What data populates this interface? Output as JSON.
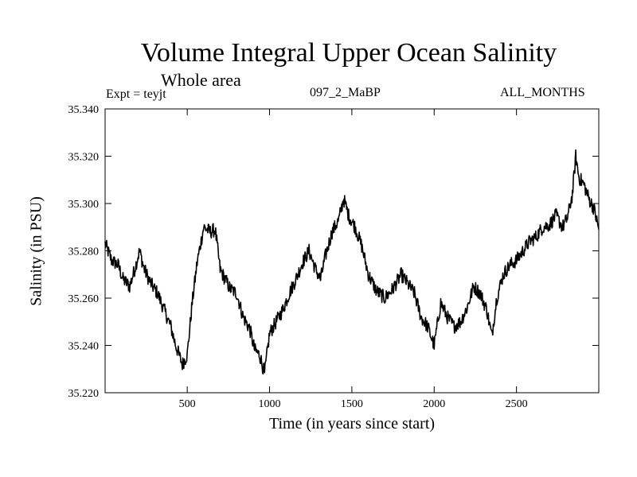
{
  "chart_data": {
    "type": "line",
    "title": "Volume Integral Upper Ocean Salinity",
    "subtitle": "Whole area",
    "annotation_left": "Expt = teyjt",
    "annotation_center": "097_2_MaBP",
    "annotation_right": "ALL_MONTHS",
    "xlabel": "Time (in years since start)",
    "ylabel": "Salinity (in PSU)",
    "xlim": [
      1,
      3000
    ],
    "ylim": [
      35.22,
      35.34
    ],
    "xticks": [
      500,
      1000,
      1500,
      2000,
      2500
    ],
    "xtick_labels": [
      "500",
      "1000",
      "1500",
      "2000",
      "2500"
    ],
    "yticks": [
      35.22,
      35.24,
      35.26,
      35.28,
      35.3,
      35.32,
      35.34
    ],
    "ytick_labels": [
      "35.220",
      "35.240",
      "35.260",
      "35.280",
      "35.300",
      "35.320",
      "35.340"
    ],
    "line_color": "#000000",
    "series": [
      {
        "name": "salinity",
        "x": [
          1,
          40,
          80,
          110,
          150,
          180,
          210,
          240,
          280,
          320,
          360,
          400,
          430,
          470,
          500,
          530,
          560,
          600,
          640,
          670,
          700,
          730,
          760,
          800,
          840,
          880,
          910,
          940,
          970,
          1000,
          1040,
          1080,
          1120,
          1160,
          1200,
          1240,
          1280,
          1310,
          1340,
          1380,
          1420,
          1450,
          1480,
          1520,
          1560,
          1600,
          1650,
          1700,
          1750,
          1800,
          1850,
          1880,
          1920,
          1960,
          2000,
          2040,
          2080,
          2120,
          2160,
          2200,
          2240,
          2280,
          2320,
          2350,
          2380,
          2420,
          2460,
          2500,
          2540,
          2580,
          2620,
          2660,
          2700,
          2740,
          2780,
          2810,
          2840,
          2860,
          2880,
          2910,
          2940,
          2970,
          3000
        ],
        "values": [
          35.283,
          35.276,
          35.274,
          35.268,
          35.265,
          35.272,
          35.28,
          35.272,
          35.266,
          35.262,
          35.255,
          35.248,
          35.24,
          35.232,
          35.236,
          35.258,
          35.275,
          35.29,
          35.288,
          35.289,
          35.272,
          35.268,
          35.264,
          35.262,
          35.252,
          35.247,
          35.238,
          35.236,
          35.228,
          35.245,
          35.25,
          35.255,
          35.262,
          35.268,
          35.275,
          35.28,
          35.272,
          35.268,
          35.278,
          35.288,
          35.293,
          35.302,
          35.295,
          35.29,
          35.282,
          35.27,
          35.263,
          35.26,
          35.264,
          35.27,
          35.265,
          35.262,
          35.252,
          35.248,
          35.24,
          35.258,
          35.252,
          35.248,
          35.25,
          35.256,
          35.265,
          35.262,
          35.255,
          35.244,
          35.26,
          35.27,
          35.274,
          35.276,
          35.28,
          35.284,
          35.286,
          35.29,
          35.291,
          35.295,
          35.29,
          35.294,
          35.304,
          35.32,
          35.311,
          35.308,
          35.302,
          35.298,
          35.289
        ]
      }
    ]
  }
}
